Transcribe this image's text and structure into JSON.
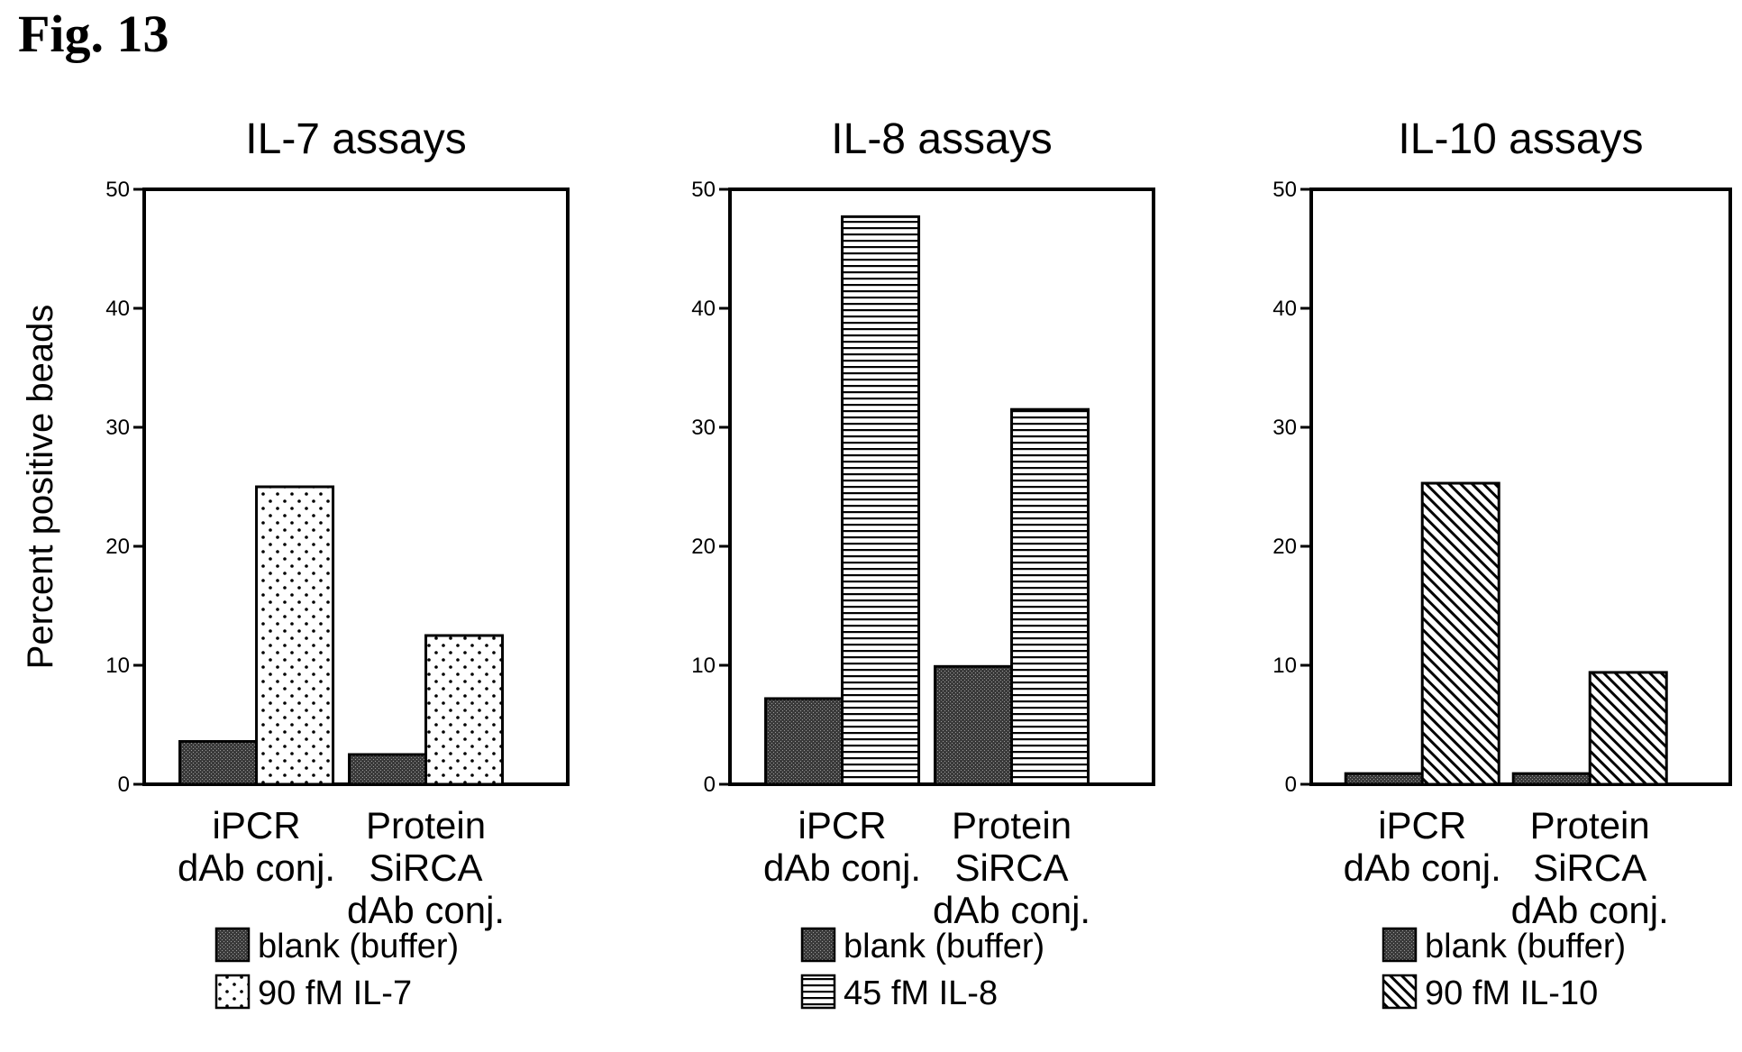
{
  "figure_label": "Fig. 13",
  "chart_data": [
    {
      "type": "bar",
      "title": "IL-7 assays",
      "ylabel": "Percent positive beads",
      "xlabel": "",
      "ylim": [
        0,
        50
      ],
      "yticks": [
        0,
        10,
        20,
        30,
        40,
        50
      ],
      "categories": [
        [
          "iPCR",
          "dAb conj."
        ],
        [
          "Protein",
          "SiRCA",
          "dAb conj."
        ]
      ],
      "series": [
        {
          "name": "blank (buffer)",
          "values": [
            3.6,
            2.5
          ],
          "pattern": "dark"
        },
        {
          "name": "90 fM IL-7",
          "values": [
            25.0,
            12.5
          ],
          "pattern": "dots"
        }
      ],
      "legend_position": "bottom"
    },
    {
      "type": "bar",
      "title": "IL-8 assays",
      "ylabel": "",
      "xlabel": "",
      "ylim": [
        0,
        50
      ],
      "yticks": [
        0,
        10,
        20,
        30,
        40,
        50
      ],
      "categories": [
        [
          "iPCR",
          "dAb conj."
        ],
        [
          "Protein",
          "SiRCA",
          "dAb conj."
        ]
      ],
      "series": [
        {
          "name": "blank (buffer)",
          "values": [
            7.2,
            9.9
          ],
          "pattern": "dark"
        },
        {
          "name": "45 fM IL-8",
          "values": [
            47.7,
            31.5
          ],
          "pattern": "hlines"
        }
      ],
      "legend_position": "bottom"
    },
    {
      "type": "bar",
      "title": "IL-10 assays",
      "ylabel": "",
      "xlabel": "",
      "ylim": [
        0,
        50
      ],
      "yticks": [
        0,
        10,
        20,
        30,
        40,
        50
      ],
      "categories": [
        [
          "iPCR",
          "dAb conj."
        ],
        [
          "Protein",
          "SiRCA",
          "dAb conj."
        ]
      ],
      "series": [
        {
          "name": "blank (buffer)",
          "values": [
            0.9,
            0.9
          ],
          "pattern": "dark"
        },
        {
          "name": "90 fM IL-10",
          "values": [
            25.3,
            9.4
          ],
          "pattern": "diag"
        }
      ],
      "legend_position": "bottom"
    }
  ]
}
